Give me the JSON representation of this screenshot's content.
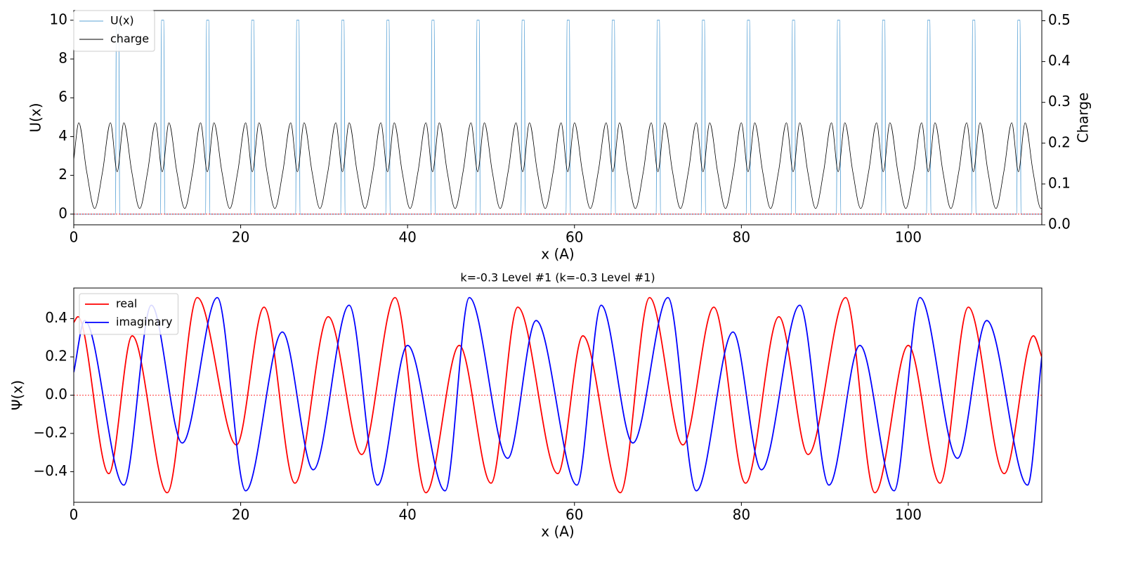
{
  "chart_data": [
    {
      "type": "line",
      "xlabel": "x (A)",
      "ylabel": "U(x)",
      "y2label": "Charge",
      "xlim": [
        0,
        116
      ],
      "xticks": [
        0,
        20,
        40,
        60,
        80,
        100
      ],
      "ylim": [
        -0.55,
        10.5
      ],
      "yticks": [
        0,
        2,
        4,
        6,
        8,
        10
      ],
      "y2lim": [
        0,
        0.525
      ],
      "y2ticks": [
        {
          "value": 0,
          "label": "0.0"
        },
        0.1,
        0.2,
        0.3,
        0.4,
        0.5
      ],
      "legend": "upper left",
      "hline": {
        "value": 0,
        "color": "red"
      },
      "series": [
        {
          "name": "U(x)",
          "color": "#5ba3d6",
          "axis": "y",
          "x": [
            0,
            5,
            5.1,
            5.4,
            5.5,
            10.4,
            10.5,
            10.8,
            10.9,
            15.8,
            15.9,
            16.2,
            16.3,
            21.2,
            21.3,
            21.6,
            21.7,
            26.6,
            26.7,
            27,
            27.1,
            32,
            32.1,
            32.4,
            32.5,
            37.4,
            37.5,
            37.8,
            37.9,
            42.8,
            42.9,
            43.2,
            43.3,
            48.2,
            48.3,
            48.6,
            48.7,
            53.6,
            53.7,
            54,
            54.1,
            59,
            59.1,
            59.4,
            59.5,
            64.4,
            64.5,
            64.8,
            64.9,
            69.8,
            69.9,
            70.2,
            70.3,
            75.2,
            75.3,
            75.6,
            75.7,
            80.6,
            80.7,
            81,
            81.1,
            86,
            86.1,
            86.4,
            86.5,
            91.4,
            91.5,
            91.8,
            91.9,
            96.8,
            96.9,
            97.2,
            97.3,
            102.2,
            102.3,
            102.6,
            102.7,
            107.6,
            107.7,
            108,
            108.1,
            113,
            113.1,
            113.4,
            113.5,
            116
          ],
          "values": [
            0,
            0,
            10,
            10,
            0,
            0,
            10,
            10,
            0,
            0,
            10,
            10,
            0,
            0,
            10,
            10,
            0,
            0,
            10,
            10,
            0,
            0,
            10,
            10,
            0,
            0,
            10,
            10,
            0,
            0,
            10,
            10,
            0,
            0,
            10,
            10,
            0,
            0,
            10,
            10,
            0,
            0,
            10,
            10,
            0,
            0,
            10,
            10,
            0,
            0,
            10,
            10,
            0,
            0,
            10,
            10,
            0,
            0,
            10,
            10,
            0,
            0,
            10,
            10,
            0,
            0,
            10,
            10,
            0,
            0,
            10,
            10,
            0,
            0,
            10,
            10,
            0,
            0,
            10,
            10,
            0,
            0,
            10,
            10,
            0,
            0
          ]
        },
        {
          "name": "charge",
          "color": "#000000",
          "axis": "y2",
          "x": [
            0,
            0.6,
            1.55,
            2.5,
            3.45,
            4.4,
            5.2,
            6,
            6.95,
            7.9,
            8.85,
            9.8,
            10.6,
            11.4,
            12.35,
            13.3,
            14.25,
            15.2,
            16,
            16.8,
            17.75,
            18.7,
            19.65,
            20.6,
            21.4,
            22.2,
            23.15,
            24.1,
            25.05,
            26,
            26.8,
            27.6,
            28.55,
            29.5,
            30.45,
            31.4,
            32.2,
            33,
            33.95,
            34.9,
            35.85,
            36.8,
            37.6,
            38.4,
            39.35,
            40.3,
            41.25,
            42.2,
            43,
            43.8,
            44.75,
            45.7,
            46.65,
            47.6,
            48.4,
            49.2,
            50.15,
            51.1,
            52.05,
            53,
            53.8,
            54.6,
            55.55,
            56.5,
            57.45,
            58.4,
            59.2,
            60,
            60.95,
            61.9,
            62.85,
            63.8,
            64.6,
            65.4,
            66.35,
            67.3,
            68.25,
            69.2,
            70,
            70.8,
            71.75,
            72.7,
            73.65,
            74.6,
            75.4,
            76.2,
            77.15,
            78.1,
            79.05,
            80,
            80.8,
            81.6,
            82.55,
            83.5,
            84.45,
            85.4,
            86.2,
            87,
            87.95,
            88.9,
            89.85,
            90.8,
            91.6,
            92.4,
            93.35,
            94.3,
            95.25,
            96.2,
            97,
            97.8,
            98.75,
            99.7,
            100.65,
            101.6,
            102.4,
            103.2,
            104.15,
            105.1,
            106.05,
            107,
            107.8,
            108.6,
            109.55,
            110.5,
            111.45,
            112.4,
            113.2,
            114,
            114.95,
            115.9,
            116
          ],
          "values": [
            0.16,
            0.25,
            0.13,
            0.04,
            0.13,
            0.25,
            0.13,
            0.25,
            0.13,
            0.04,
            0.13,
            0.25,
            0.13,
            0.25,
            0.13,
            0.04,
            0.13,
            0.25,
            0.13,
            0.25,
            0.13,
            0.04,
            0.13,
            0.25,
            0.13,
            0.25,
            0.13,
            0.04,
            0.13,
            0.25,
            0.13,
            0.25,
            0.13,
            0.04,
            0.13,
            0.25,
            0.13,
            0.25,
            0.13,
            0.04,
            0.13,
            0.25,
            0.13,
            0.25,
            0.13,
            0.04,
            0.13,
            0.25,
            0.13,
            0.25,
            0.13,
            0.04,
            0.13,
            0.25,
            0.13,
            0.25,
            0.13,
            0.04,
            0.13,
            0.25,
            0.13,
            0.25,
            0.13,
            0.04,
            0.13,
            0.25,
            0.13,
            0.25,
            0.13,
            0.04,
            0.13,
            0.25,
            0.13,
            0.25,
            0.13,
            0.04,
            0.13,
            0.25,
            0.13,
            0.25,
            0.13,
            0.04,
            0.13,
            0.25,
            0.13,
            0.25,
            0.13,
            0.04,
            0.13,
            0.25,
            0.13,
            0.25,
            0.13,
            0.04,
            0.13,
            0.25,
            0.13,
            0.25,
            0.13,
            0.04,
            0.13,
            0.25,
            0.13,
            0.25,
            0.13,
            0.04,
            0.13,
            0.25,
            0.13,
            0.25,
            0.13,
            0.04,
            0.13,
            0.25,
            0.13,
            0.25,
            0.13,
            0.04,
            0.13,
            0.25,
            0.13,
            0.25,
            0.13,
            0.04,
            0.13,
            0.25,
            0.13,
            0.25,
            0.13,
            0.04,
            0.04
          ]
        }
      ]
    },
    {
      "type": "line",
      "title": "k=-0.3 Level #1 (k=-0.3 Level #1)",
      "xlabel": "x (A)",
      "ylabel": "Ψ(x)",
      "xlim": [
        0,
        116
      ],
      "xticks": [
        0,
        20,
        40,
        60,
        80,
        100
      ],
      "ylim": [
        -0.56,
        0.56
      ],
      "yticks": [
        {
          "value": -0.4,
          "label": "−0.4"
        },
        {
          "value": -0.2,
          "label": "−0.2"
        },
        {
          "value": 0,
          "label": "0.0"
        },
        0.2,
        0.4
      ],
      "legend": "upper left",
      "hline": {
        "value": 0,
        "color": "red"
      },
      "series": [
        {
          "name": "real",
          "color": "#ff0000",
          "axis": "y",
          "x": [
            0,
            0.5,
            4.2,
            7,
            11.2,
            14.8,
            19.5,
            22.8,
            26.5,
            30.5,
            34.5,
            38.5,
            42.2,
            46.2,
            50,
            53.2,
            58,
            61,
            65.5,
            69,
            73,
            76.7,
            80.5,
            84.5,
            88,
            92.5,
            96,
            100,
            103.8,
            107.2,
            111.5,
            115,
            116
          ],
          "values": [
            0.38,
            0.41,
            -0.41,
            0.31,
            -0.51,
            0.51,
            -0.26,
            0.46,
            -0.46,
            0.41,
            -0.31,
            0.51,
            -0.51,
            0.26,
            -0.46,
            0.46,
            -0.41,
            0.31,
            -0.51,
            0.51,
            -0.26,
            0.46,
            -0.46,
            0.41,
            -0.31,
            0.51,
            -0.51,
            0.26,
            -0.46,
            0.46,
            -0.41,
            0.31,
            0.2
          ]
        },
        {
          "name": "imaginary",
          "color": "#0000ff",
          "axis": "y",
          "x": [
            0,
            1.3,
            6,
            9.3,
            13,
            17.2,
            20.6,
            25,
            28.7,
            33,
            36.4,
            40,
            44.5,
            47.4,
            52,
            55.4,
            60.3,
            63.2,
            67,
            71.2,
            74.6,
            79,
            82.4,
            87,
            90.5,
            94.2,
            98.3,
            101.4,
            105.9,
            109.4,
            114.3,
            116
          ],
          "values": [
            0.12,
            0.39,
            -0.47,
            0.47,
            -0.25,
            0.51,
            -0.5,
            0.33,
            -0.39,
            0.47,
            -0.47,
            0.26,
            -0.5,
            0.51,
            -0.33,
            0.39,
            -0.47,
            0.47,
            -0.25,
            0.51,
            -0.5,
            0.33,
            -0.39,
            0.47,
            -0.47,
            0.26,
            -0.5,
            0.51,
            -0.33,
            0.39,
            -0.47,
            0.2
          ]
        }
      ]
    }
  ]
}
